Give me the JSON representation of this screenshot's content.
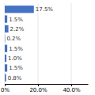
{
  "chart_data": {
    "type": "bar",
    "orientation": "horizontal",
    "values": [
      17.5,
      1.5,
      2.2,
      0.2,
      1.5,
      1.0,
      1.5,
      0.8
    ],
    "value_labels": [
      "17.5%",
      "1.5%",
      "2.2%",
      "0.2%",
      "1.5%",
      "1.0%",
      "1.5%",
      "0.8%"
    ],
    "data_labels": true,
    "color": "#4472C4",
    "xlim": [
      0,
      50
    ],
    "xticks": [
      {
        "value": 0,
        "label": "0%"
      },
      {
        "value": 20.0,
        "label": "20.0%"
      },
      {
        "value": 40.0,
        "label": "40.0%"
      }
    ],
    "grid": true,
    "tick_labels": "x"
  }
}
